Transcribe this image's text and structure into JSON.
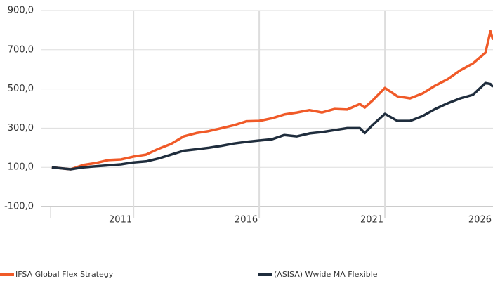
{
  "chart_data": {
    "type": "line",
    "x": [
      2007.75,
      2008.5,
      2009,
      2009.5,
      2010,
      2010.5,
      2011,
      2011.5,
      2012,
      2012.5,
      2013,
      2013.5,
      2014,
      2014.5,
      2015,
      2015.5,
      2016,
      2016.5,
      2017,
      2017.5,
      2018,
      2018.5,
      2019,
      2019.5,
      2020,
      2020.2,
      2020.5,
      2021,
      2021.5,
      2022,
      2022.5,
      2023,
      2023.5,
      2024,
      2024.5,
      2025,
      2025.2,
      2025.3
    ],
    "series": [
      {
        "name": "IFSA Global Flex Strategy",
        "color": "#f05a28",
        "values": [
          100,
          90,
          112,
          122,
          137,
          140,
          155,
          165,
          195,
          220,
          258,
          275,
          285,
          300,
          315,
          335,
          337,
          350,
          370,
          380,
          392,
          380,
          398,
          395,
          423,
          405,
          440,
          505,
          462,
          452,
          477,
          517,
          550,
          595,
          630,
          685,
          795,
          750
        ]
      },
      {
        "name": "(ASISA) Wwide MA Flexible",
        "color": "#1f2d3d",
        "values": [
          100,
          90,
          100,
          105,
          110,
          115,
          125,
          130,
          145,
          165,
          185,
          192,
          200,
          210,
          222,
          230,
          237,
          243,
          265,
          258,
          273,
          280,
          290,
          300,
          300,
          275,
          315,
          373,
          337,
          337,
          362,
          398,
          427,
          452,
          470,
          530,
          525,
          510
        ]
      }
    ],
    "xlim": [
      2007.7,
      2025.3
    ],
    "xticks": [
      2011,
      2016,
      2021,
      2026
    ],
    "ylim": [
      -100,
      900
    ],
    "yticks": [
      {
        "value": -100,
        "label": "-100,0"
      },
      {
        "value": 100,
        "label": "100,0"
      },
      {
        "value": 300,
        "label": "300,0"
      },
      {
        "value": 500,
        "label": "500,0"
      },
      {
        "value": 700,
        "label": "700,0"
      },
      {
        "value": 900,
        "label": "900,0"
      }
    ],
    "grid": true,
    "legend": "bottom"
  }
}
